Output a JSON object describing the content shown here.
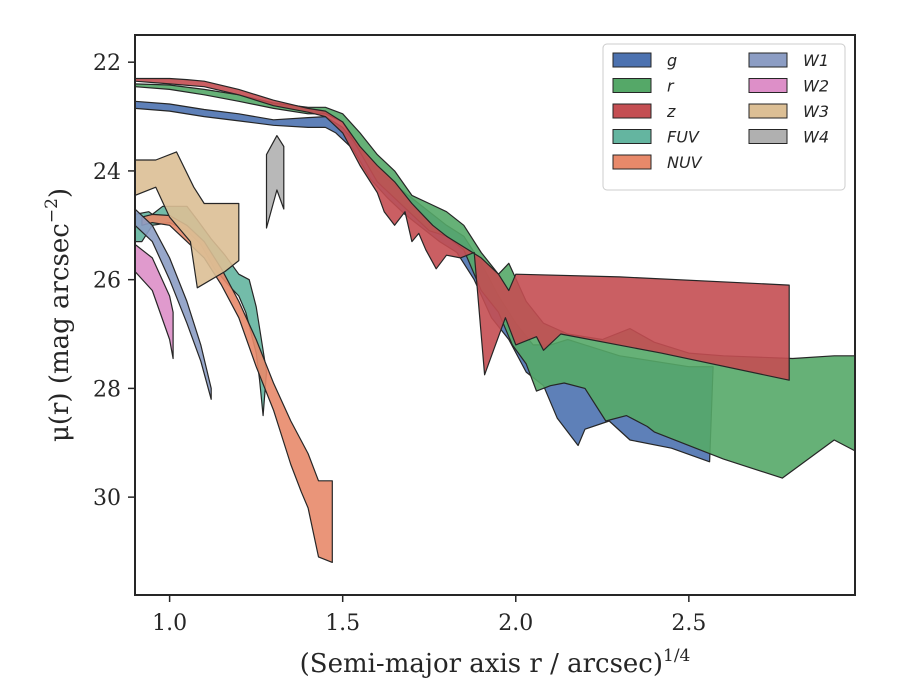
{
  "chart_data": {
    "type": "area",
    "xlabel": "(Semi-major axis r / arcsec)",
    "xlabel_superscript": "1/4",
    "ylabel": "μ(r) (mag arcsec",
    "ylabel_superscript": "−2",
    "ylabel_close": ")",
    "xlim": [
      0.9,
      2.98
    ],
    "ylim": [
      31.8,
      21.5
    ],
    "y_inverted": true,
    "xticks": [
      1.0,
      1.5,
      2.0,
      2.5
    ],
    "xtick_labels": [
      "1.0",
      "1.5",
      "2.0",
      "2.5"
    ],
    "yticks": [
      22,
      24,
      26,
      28,
      30
    ],
    "ytick_labels": [
      "22",
      "24",
      "26",
      "28",
      "30"
    ],
    "grid": false,
    "legend": {
      "position": "top-right",
      "columns": 2
    },
    "series": [
      {
        "name": "g",
        "color": "#4c72b0",
        "upper": [
          [
            0.9,
            22.72
          ],
          [
            1.0,
            22.77
          ],
          [
            1.1,
            22.87
          ],
          [
            1.2,
            22.95
          ],
          [
            1.3,
            23.06
          ],
          [
            1.4,
            23.02
          ],
          [
            1.45,
            23.0
          ],
          [
            1.5,
            23.2
          ],
          [
            1.55,
            23.6
          ],
          [
            1.6,
            24.0
          ],
          [
            1.65,
            24.25
          ],
          [
            1.7,
            24.5
          ],
          [
            1.75,
            24.75
          ],
          [
            1.8,
            25.0
          ],
          [
            1.85,
            25.2
          ],
          [
            1.9,
            25.7
          ],
          [
            1.95,
            26.3
          ],
          [
            2.0,
            26.8
          ],
          [
            2.05,
            27.2
          ],
          [
            2.1,
            27.2
          ],
          [
            2.15,
            27.1
          ],
          [
            2.2,
            27.2
          ],
          [
            2.3,
            27.4
          ],
          [
            2.5,
            27.6
          ],
          [
            2.57,
            27.6
          ]
        ],
        "lower": [
          [
            2.56,
            29.35
          ],
          [
            2.45,
            29.1
          ],
          [
            2.33,
            28.95
          ],
          [
            2.27,
            28.6
          ],
          [
            2.2,
            28.75
          ],
          [
            2.18,
            29.05
          ],
          [
            2.12,
            28.55
          ],
          [
            2.08,
            27.95
          ],
          [
            2.03,
            27.7
          ],
          [
            1.98,
            27.1
          ],
          [
            1.93,
            26.7
          ],
          [
            1.88,
            26.0
          ],
          [
            1.83,
            25.5
          ],
          [
            1.78,
            25.3
          ],
          [
            1.73,
            25.05
          ],
          [
            1.68,
            24.8
          ],
          [
            1.63,
            24.5
          ],
          [
            1.58,
            24.15
          ],
          [
            1.53,
            23.6
          ],
          [
            1.48,
            23.3
          ],
          [
            1.45,
            23.2
          ],
          [
            1.4,
            23.2
          ],
          [
            1.3,
            23.16
          ],
          [
            1.2,
            23.08
          ],
          [
            1.1,
            23.0
          ],
          [
            1.0,
            22.9
          ],
          [
            0.9,
            22.85
          ]
        ]
      },
      {
        "name": "r",
        "color": "#55a868",
        "upper": [
          [
            0.9,
            22.4
          ],
          [
            1.0,
            22.42
          ],
          [
            1.1,
            22.5
          ],
          [
            1.2,
            22.6
          ],
          [
            1.3,
            22.75
          ],
          [
            1.4,
            22.83
          ],
          [
            1.45,
            22.83
          ],
          [
            1.5,
            22.95
          ],
          [
            1.55,
            23.3
          ],
          [
            1.6,
            23.7
          ],
          [
            1.65,
            24.0
          ],
          [
            1.7,
            24.45
          ],
          [
            1.75,
            24.6
          ],
          [
            1.8,
            24.75
          ],
          [
            1.85,
            25.0
          ],
          [
            1.9,
            25.5
          ],
          [
            1.95,
            25.9
          ],
          [
            1.98,
            25.7
          ],
          [
            2.03,
            26.4
          ],
          [
            2.08,
            26.8
          ],
          [
            2.15,
            27.0
          ],
          [
            2.25,
            27.1
          ],
          [
            2.33,
            26.9
          ],
          [
            2.4,
            27.15
          ],
          [
            2.5,
            27.35
          ],
          [
            2.6,
            27.4
          ],
          [
            2.8,
            27.45
          ],
          [
            2.92,
            27.4
          ],
          [
            2.98,
            27.4
          ]
        ],
        "lower": [
          [
            2.98,
            29.15
          ],
          [
            2.92,
            28.95
          ],
          [
            2.77,
            29.65
          ],
          [
            2.6,
            29.3
          ],
          [
            2.4,
            28.8
          ],
          [
            2.38,
            28.7
          ],
          [
            2.32,
            28.5
          ],
          [
            2.26,
            28.6
          ],
          [
            2.2,
            28.0
          ],
          [
            2.14,
            27.9
          ],
          [
            2.1,
            27.95
          ],
          [
            2.06,
            28.05
          ],
          [
            2.03,
            27.55
          ],
          [
            1.99,
            27.2
          ],
          [
            1.95,
            26.6
          ],
          [
            1.9,
            26.2
          ],
          [
            1.85,
            25.45
          ],
          [
            1.8,
            25.2
          ],
          [
            1.75,
            25.1
          ],
          [
            1.7,
            24.8
          ],
          [
            1.65,
            24.5
          ],
          [
            1.6,
            24.2
          ],
          [
            1.55,
            23.65
          ],
          [
            1.5,
            23.1
          ],
          [
            1.45,
            22.95
          ],
          [
            1.4,
            22.95
          ],
          [
            1.3,
            22.85
          ],
          [
            1.2,
            22.72
          ],
          [
            1.1,
            22.6
          ],
          [
            1.0,
            22.5
          ],
          [
            0.9,
            22.45
          ]
        ]
      },
      {
        "name": "z",
        "color": "#c44e52",
        "upper": [
          [
            0.9,
            22.3
          ],
          [
            1.0,
            22.3
          ],
          [
            1.05,
            22.32
          ],
          [
            1.1,
            22.35
          ],
          [
            1.2,
            22.5
          ],
          [
            1.3,
            22.7
          ],
          [
            1.4,
            22.85
          ],
          [
            1.45,
            22.9
          ],
          [
            1.5,
            23.1
          ],
          [
            1.55,
            23.55
          ],
          [
            1.6,
            23.9
          ],
          [
            1.65,
            24.2
          ],
          [
            1.7,
            24.6
          ],
          [
            1.73,
            24.8
          ],
          [
            1.76,
            25.0
          ],
          [
            1.8,
            25.2
          ],
          [
            1.85,
            25.4
          ],
          [
            1.9,
            25.6
          ],
          [
            1.95,
            25.9
          ],
          [
            1.98,
            26.2
          ],
          [
            2.0,
            25.9
          ],
          [
            2.3,
            25.95
          ],
          [
            2.79,
            26.1
          ]
        ],
        "lower": [
          [
            2.79,
            27.85
          ],
          [
            2.42,
            27.35
          ],
          [
            2.13,
            27.0
          ],
          [
            2.08,
            27.3
          ],
          [
            2.06,
            27.05
          ],
          [
            2.0,
            27.2
          ],
          [
            1.97,
            26.7
          ],
          [
            1.93,
            27.4
          ],
          [
            1.91,
            27.75
          ],
          [
            1.88,
            25.5
          ],
          [
            1.84,
            25.6
          ],
          [
            1.8,
            25.55
          ],
          [
            1.77,
            25.8
          ],
          [
            1.74,
            25.45
          ],
          [
            1.72,
            25.15
          ],
          [
            1.7,
            25.3
          ],
          [
            1.68,
            24.75
          ],
          [
            1.65,
            25.0
          ],
          [
            1.62,
            24.75
          ],
          [
            1.6,
            24.4
          ],
          [
            1.55,
            23.9
          ],
          [
            1.5,
            23.3
          ],
          [
            1.45,
            23.0
          ],
          [
            1.4,
            22.92
          ],
          [
            1.3,
            22.8
          ],
          [
            1.2,
            22.6
          ],
          [
            1.1,
            22.45
          ],
          [
            1.0,
            22.4
          ],
          [
            0.9,
            22.35
          ]
        ]
      },
      {
        "name": "FUV",
        "color": "#64b5a0",
        "upper": [
          [
            0.9,
            24.8
          ],
          [
            0.94,
            24.75
          ],
          [
            0.95,
            24.8
          ],
          [
            0.98,
            24.65
          ],
          [
            1.05,
            24.65
          ],
          [
            1.08,
            24.9
          ],
          [
            1.12,
            25.25
          ],
          [
            1.16,
            25.55
          ],
          [
            1.2,
            25.9
          ],
          [
            1.23,
            26.0
          ],
          [
            1.25,
            26.5
          ],
          [
            1.27,
            27.3
          ],
          [
            1.28,
            27.7
          ]
        ],
        "lower": [
          [
            1.27,
            28.5
          ],
          [
            1.26,
            27.85
          ],
          [
            1.25,
            27.35
          ],
          [
            1.22,
            26.6
          ],
          [
            1.2,
            26.3
          ],
          [
            1.17,
            26.1
          ],
          [
            1.13,
            25.8
          ],
          [
            1.09,
            25.35
          ],
          [
            1.05,
            25.1
          ],
          [
            1.0,
            24.95
          ],
          [
            0.95,
            25.0
          ],
          [
            0.92,
            25.3
          ],
          [
            0.9,
            25.3
          ]
        ]
      },
      {
        "name": "NUV",
        "color": "#e8896a",
        "upper": [
          [
            0.92,
            24.85
          ],
          [
            0.95,
            24.8
          ],
          [
            1.0,
            24.82
          ],
          [
            1.05,
            25.0
          ],
          [
            1.1,
            25.3
          ],
          [
            1.15,
            25.8
          ],
          [
            1.2,
            26.4
          ],
          [
            1.25,
            27.1
          ],
          [
            1.3,
            27.9
          ],
          [
            1.35,
            28.6
          ],
          [
            1.4,
            29.2
          ],
          [
            1.43,
            29.7
          ],
          [
            1.47,
            29.7
          ]
        ],
        "lower": [
          [
            1.47,
            31.2
          ],
          [
            1.43,
            31.1
          ],
          [
            1.4,
            30.2
          ],
          [
            1.38,
            29.9
          ],
          [
            1.35,
            29.4
          ],
          [
            1.3,
            28.4
          ],
          [
            1.25,
            27.6
          ],
          [
            1.2,
            26.7
          ],
          [
            1.15,
            26.1
          ],
          [
            1.1,
            25.6
          ],
          [
            1.05,
            25.3
          ],
          [
            1.0,
            25.0
          ],
          [
            0.95,
            24.95
          ],
          [
            0.92,
            25.0
          ]
        ]
      },
      {
        "name": "W1",
        "color": "#8c9dc4",
        "upper": [
          [
            0.9,
            24.7
          ],
          [
            0.95,
            25.0
          ],
          [
            1.0,
            25.6
          ],
          [
            1.05,
            26.4
          ],
          [
            1.09,
            27.2
          ],
          [
            1.12,
            28.0
          ]
        ],
        "lower": [
          [
            1.12,
            28.2
          ],
          [
            1.09,
            27.5
          ],
          [
            1.05,
            26.8
          ],
          [
            1.0,
            26.0
          ],
          [
            0.95,
            25.3
          ],
          [
            0.9,
            25.0
          ]
        ]
      },
      {
        "name": "W2",
        "color": "#dd8fc8",
        "upper": [
          [
            0.9,
            25.35
          ],
          [
            0.95,
            25.6
          ],
          [
            1.0,
            26.3
          ],
          [
            1.01,
            26.6
          ]
        ],
        "lower": [
          [
            1.01,
            27.45
          ],
          [
            1.0,
            27.1
          ],
          [
            0.95,
            26.2
          ],
          [
            0.9,
            25.85
          ]
        ]
      },
      {
        "name": "W3",
        "color": "#dcbf95",
        "upper": [
          [
            0.9,
            23.8
          ],
          [
            0.96,
            23.8
          ],
          [
            1.02,
            23.65
          ],
          [
            1.07,
            24.3
          ],
          [
            1.1,
            24.6
          ],
          [
            1.2,
            24.6
          ],
          [
            1.2,
            25.65
          ]
        ],
        "lower": [
          [
            1.2,
            25.65
          ],
          [
            1.16,
            25.85
          ],
          [
            1.08,
            26.15
          ],
          [
            1.06,
            25.3
          ],
          [
            1.0,
            24.85
          ],
          [
            0.96,
            24.3
          ],
          [
            0.9,
            24.45
          ]
        ]
      },
      {
        "name": "W4",
        "color": "#b0b0b0",
        "upper": [
          [
            1.28,
            23.7
          ],
          [
            1.31,
            23.35
          ],
          [
            1.33,
            23.55
          ],
          [
            1.33,
            24.7
          ]
        ],
        "lower": [
          [
            1.33,
            24.7
          ],
          [
            1.31,
            24.35
          ],
          [
            1.28,
            25.05
          ]
        ]
      }
    ],
    "colors": {
      "axis": "#262626",
      "edge": "#262626",
      "background": "#ffffff"
    }
  }
}
